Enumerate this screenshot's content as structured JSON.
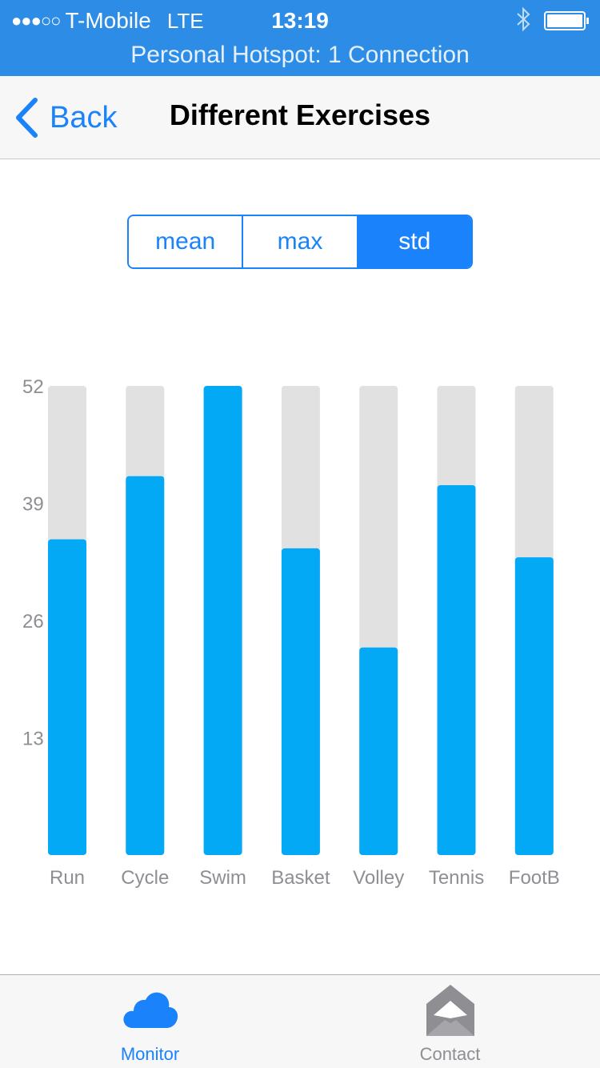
{
  "status_bar": {
    "signal_dots": "●●●○○",
    "carrier": "T-Mobile",
    "network": "LTE",
    "time": "13:19",
    "bluetooth_icon": "bluetooth-icon",
    "battery_icon": "battery-full-icon",
    "hotspot_text": "Personal Hotspot: 1 Connection",
    "color": "#2d8de6"
  },
  "nav": {
    "back_label": "Back",
    "title": "Different Exercises"
  },
  "segmented": {
    "options": [
      "mean",
      "max",
      "std"
    ],
    "selected": "std",
    "accent": "#1a82fb"
  },
  "chart_data": {
    "type": "bar",
    "categories": [
      "Run",
      "Cycle",
      "Swim",
      "Basket",
      "Volley",
      "Tennis",
      "FootB"
    ],
    "values": [
      35,
      42,
      52,
      34,
      23,
      41,
      33
    ],
    "yticks": [
      13,
      26,
      39,
      52
    ],
    "ylim": [
      0,
      52
    ],
    "bar_color": "#03a9f4",
    "track_color": "#e1e1e1",
    "grid": false
  },
  "tab_bar": {
    "tabs": [
      {
        "label": "Monitor",
        "icon": "cloud-icon",
        "selected": true
      },
      {
        "label": "Contact",
        "icon": "envelope-icon",
        "selected": false
      }
    ]
  }
}
